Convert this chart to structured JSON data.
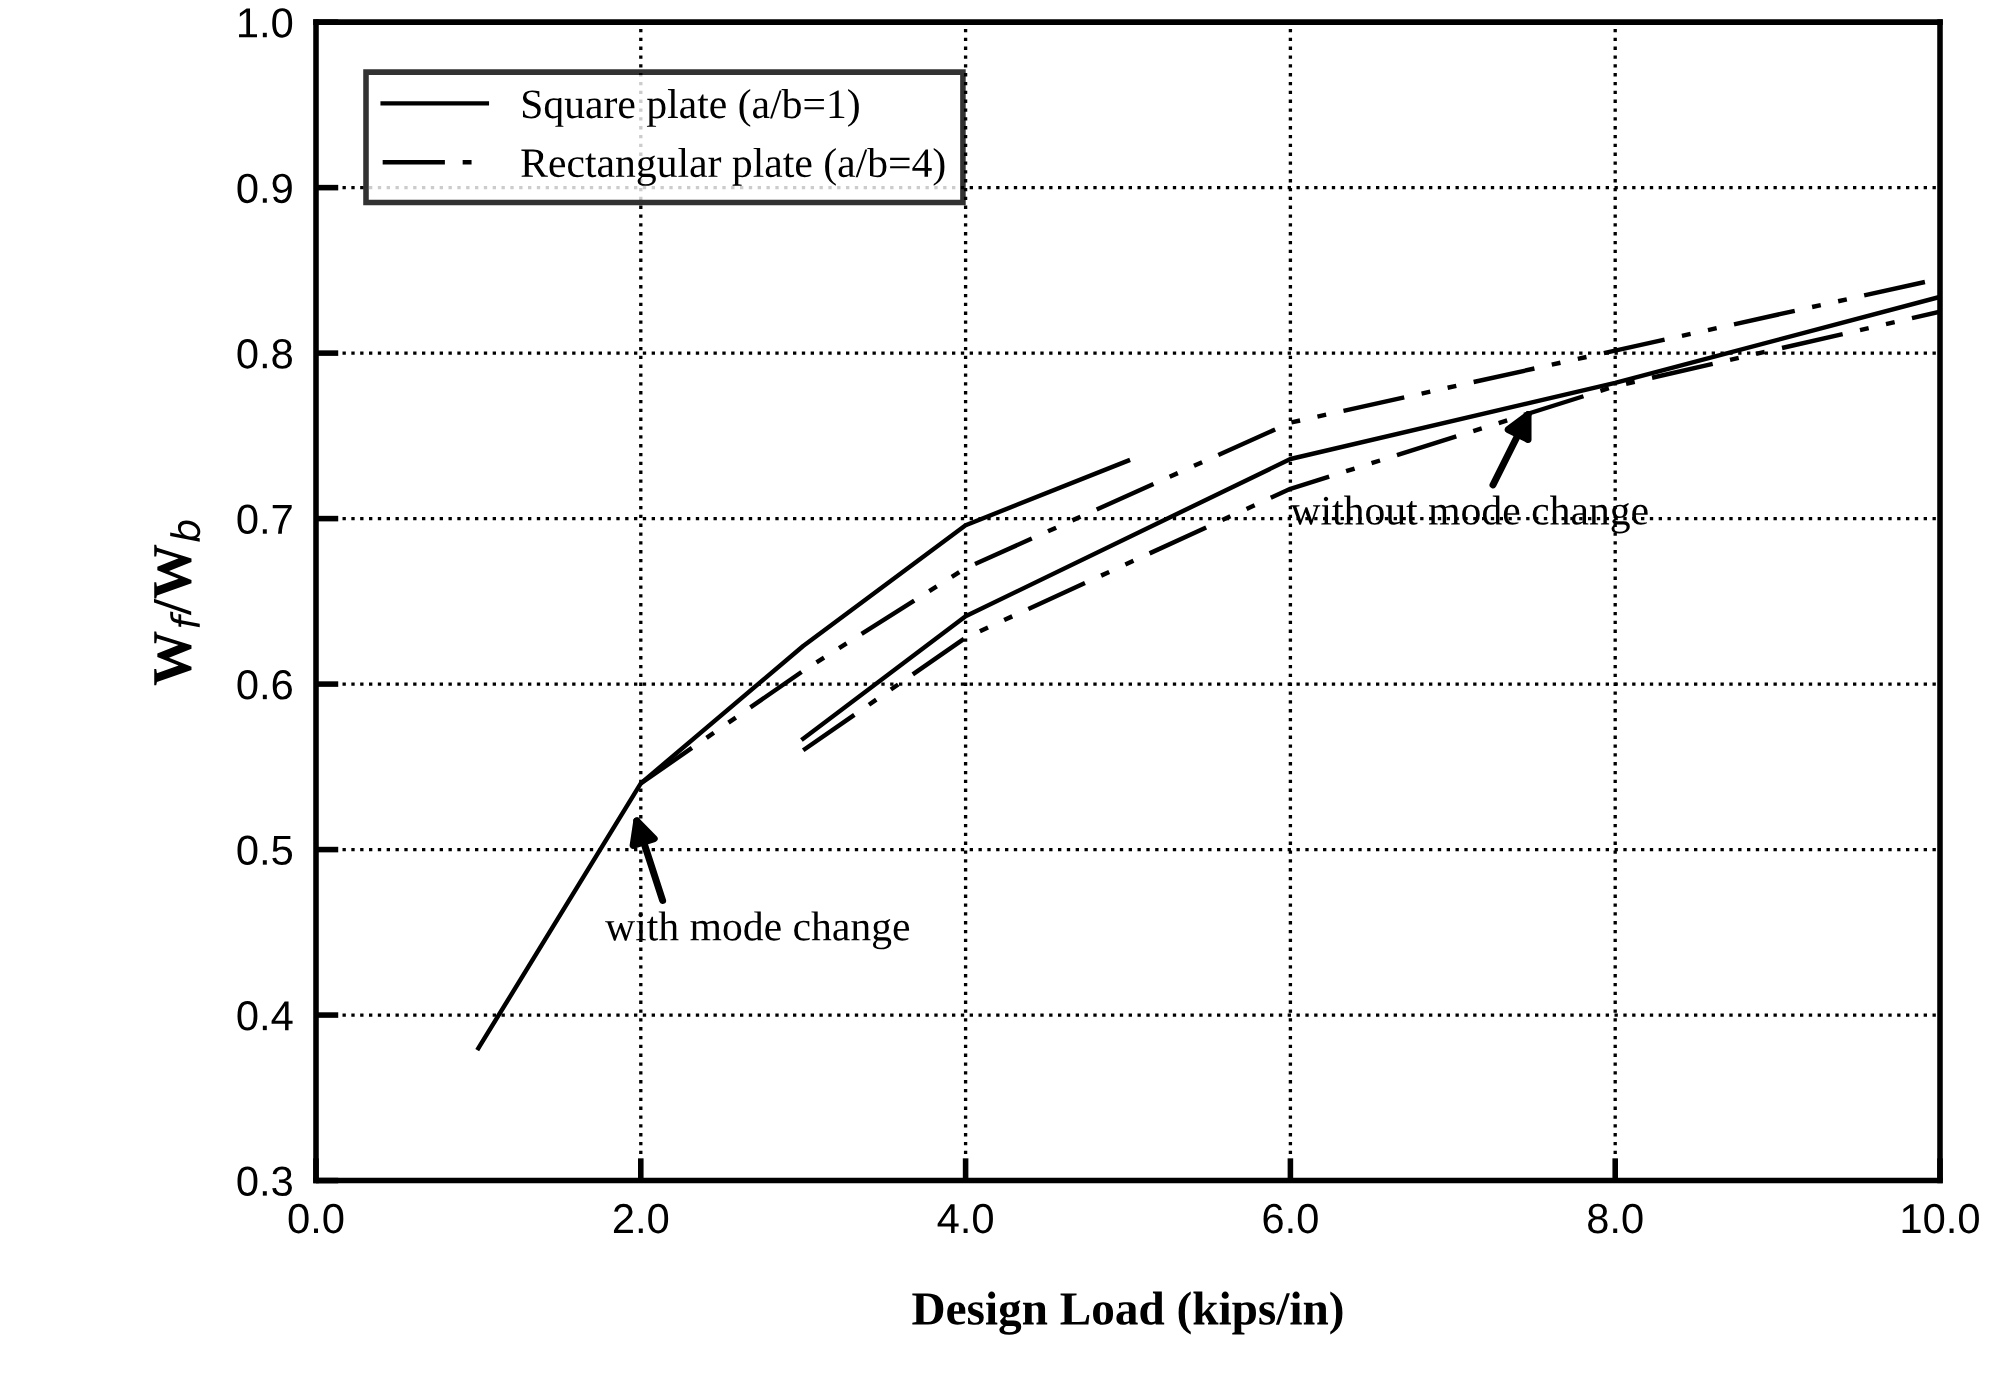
{
  "chart_data": {
    "type": "line",
    "xlabel": "Design Load (kips/in)",
    "ylabel": "W$_{f}$/W$_{b}$",
    "xlim": [
      0,
      10
    ],
    "ylim": [
      0.3,
      1.0
    ],
    "xticks": [
      {
        "value": 0,
        "label": "0.0"
      },
      {
        "value": 2,
        "label": "2.0"
      },
      {
        "value": 4,
        "label": "4.0"
      },
      {
        "value": 6,
        "label": "6.0"
      },
      {
        "value": 8,
        "label": "8.0"
      },
      {
        "value": 10,
        "label": "10.0"
      }
    ],
    "yticks": [
      {
        "value": 0.3,
        "label": "0.3"
      },
      {
        "value": 0.4,
        "label": "0.4"
      },
      {
        "value": 0.5,
        "label": "0.5"
      },
      {
        "value": 0.6,
        "label": "0.6"
      },
      {
        "value": 0.7,
        "label": "0.7"
      },
      {
        "value": 0.8,
        "label": "0.8"
      },
      {
        "value": 0.9,
        "label": "0.9"
      },
      {
        "value": 1.0,
        "label": "1.0"
      }
    ],
    "grid": true,
    "legend": "top left",
    "marker": "none",
    "series": [
      {
        "name": "Square plate (a/b=1)",
        "color": "#000000",
        "line_style": "solid",
        "x": [
          1,
          2,
          3,
          4,
          5
        ],
        "values": [
          0.38,
          0.54,
          0.623,
          0.696,
          0.735
        ]
      },
      {
        "name": "Rectangular plate (a/b=4)",
        "color": "#000000",
        "line_style": "dashed",
        "x": [
          2,
          3,
          4,
          6,
          10
        ],
        "values": [
          0.54,
          0.608,
          0.67,
          0.758,
          0.845
        ]
      },
      {
        "color": "#000000",
        "line_style": "solid",
        "x": [
          3,
          4,
          6,
          8,
          10
        ],
        "values": [
          0.567,
          0.641,
          0.736,
          0.782,
          0.834
        ]
      },
      {
        "color": "#000000",
        "line_style": "dashed",
        "x": [
          3,
          4,
          6,
          8,
          10
        ],
        "values": [
          0.56,
          0.628,
          0.718,
          0.78,
          0.825
        ]
      }
    ],
    "annotations": [
      {
        "text": "with mode change",
        "x": 1.95,
        "y": 0.525
      },
      {
        "text": "without mode change",
        "x": 7.5,
        "y": 0.77
      }
    ]
  }
}
